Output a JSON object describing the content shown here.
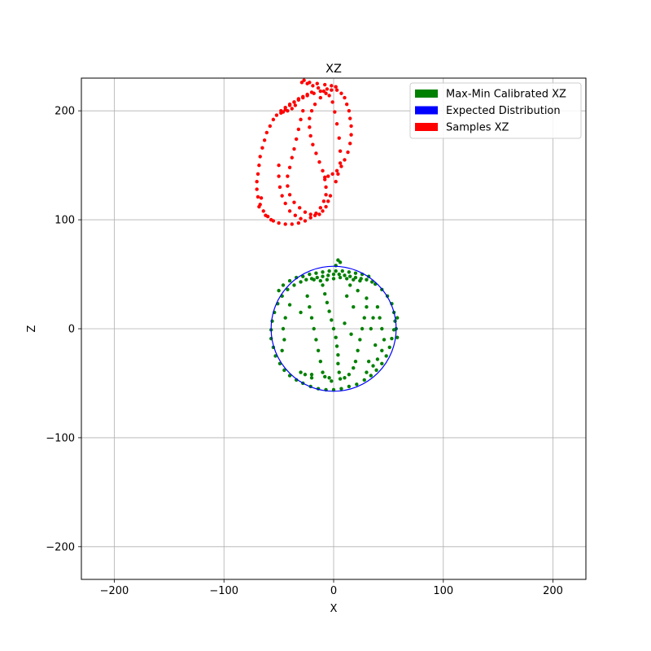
{
  "chart_data": {
    "type": "scatter",
    "title": "XZ",
    "xlabel": "X",
    "ylabel": "Z",
    "xlim": [
      -230,
      230
    ],
    "ylim": [
      -230,
      230
    ],
    "xticks": [
      -200,
      -100,
      0,
      100,
      200
    ],
    "yticks": [
      -200,
      -100,
      0,
      100,
      200
    ],
    "xtick_labels": [
      "−200",
      "−100",
      "0",
      "100",
      "200"
    ],
    "ytick_labels": [
      "−200",
      "−100",
      "0",
      "100",
      "200"
    ],
    "grid": true,
    "legend_position": "top-right",
    "legend": [
      {
        "label": "Max-Min Calibrated XZ",
        "color": "#008000"
      },
      {
        "label": "Expected Distribution",
        "color": "#0000ff"
      },
      {
        "label": "Samples XZ",
        "color": "#ff0000"
      }
    ],
    "series": [
      {
        "name": "Samples XZ",
        "kind": "points",
        "color": "#ff0000",
        "points": [
          [
            -27,
            228
          ],
          [
            -22,
            226
          ],
          [
            -15,
            225
          ],
          [
            -8,
            224
          ],
          [
            -2,
            223
          ],
          [
            2,
            222
          ],
          [
            -6,
            220
          ],
          [
            -12,
            218
          ],
          [
            -18,
            216
          ],
          [
            -24,
            214
          ],
          [
            -28,
            212
          ],
          [
            -32,
            210
          ],
          [
            -36,
            208
          ],
          [
            -40,
            206
          ],
          [
            -44,
            203
          ],
          [
            -48,
            200
          ],
          [
            -52,
            196
          ],
          [
            -55,
            192
          ],
          [
            -58,
            186
          ],
          [
            -61,
            180
          ],
          [
            -63,
            173
          ],
          [
            -65,
            166
          ],
          [
            -67,
            158
          ],
          [
            -68,
            150
          ],
          [
            -69,
            142
          ],
          [
            -70,
            135
          ],
          [
            -70,
            128
          ],
          [
            -69,
            121
          ],
          [
            -67,
            114
          ],
          [
            -64,
            108
          ],
          [
            -60,
            103
          ],
          [
            -55,
            99
          ],
          [
            -50,
            97
          ],
          [
            -44,
            96
          ],
          [
            -38,
            96
          ],
          [
            -32,
            97
          ],
          [
            -26,
            99
          ],
          [
            -21,
            102
          ],
          [
            -16,
            106
          ],
          [
            -12,
            111
          ],
          [
            -9,
            117
          ],
          [
            -7,
            123
          ],
          [
            -7,
            130
          ],
          [
            -8,
            137
          ],
          [
            -10,
            145
          ],
          [
            -13,
            153
          ],
          [
            -16,
            161
          ],
          [
            -19,
            169
          ],
          [
            -21,
            177
          ],
          [
            -22,
            185
          ],
          [
            -22,
            193
          ],
          [
            -20,
            200
          ],
          [
            -17,
            206
          ],
          [
            -12,
            212
          ],
          [
            -7,
            216
          ],
          [
            -2,
            219
          ],
          [
            3,
            219
          ],
          [
            7,
            216
          ],
          [
            10,
            212
          ],
          [
            12,
            206
          ],
          [
            14,
            200
          ],
          [
            15,
            193
          ],
          [
            16,
            186
          ],
          [
            16,
            178
          ],
          [
            15,
            170
          ],
          [
            13,
            162
          ],
          [
            10,
            155
          ],
          [
            7,
            149
          ],
          [
            3,
            145
          ],
          [
            -1,
            142
          ],
          [
            -5,
            140
          ],
          [
            -8,
            139
          ],
          [
            -48,
            198
          ],
          [
            -44,
            201
          ],
          [
            -40,
            205
          ],
          [
            -36,
            208
          ],
          [
            -32,
            211
          ],
          [
            -28,
            213
          ],
          [
            -24,
            215
          ],
          [
            -20,
            217
          ],
          [
            -50,
            150
          ],
          [
            -50,
            140
          ],
          [
            -49,
            130
          ],
          [
            -47,
            122
          ],
          [
            -44,
            115
          ],
          [
            -40,
            108
          ],
          [
            -35,
            104
          ],
          [
            -30,
            101
          ],
          [
            -28,
            200
          ],
          [
            -30,
            192
          ],
          [
            -32,
            183
          ],
          [
            -34,
            174
          ],
          [
            -36,
            165
          ],
          [
            -38,
            157
          ],
          [
            -40,
            148
          ],
          [
            -42,
            140
          ],
          [
            -42,
            131
          ],
          [
            -40,
            123
          ],
          [
            -36,
            116
          ],
          [
            -31,
            111
          ],
          [
            -26,
            107
          ],
          [
            -21,
            105
          ],
          [
            -17,
            104
          ],
          [
            -13,
            105
          ],
          [
            -10,
            108
          ],
          [
            -7,
            112
          ],
          [
            -5,
            117
          ],
          [
            -3,
            122
          ],
          [
            2,
            135
          ],
          [
            4,
            142
          ],
          [
            6,
            152
          ],
          [
            6,
            163
          ],
          [
            5,
            175
          ],
          [
            3,
            188
          ],
          [
            1,
            199
          ],
          [
            -1,
            208
          ],
          [
            -4,
            214
          ],
          [
            -9,
            218
          ],
          [
            -14,
            221
          ],
          [
            -19,
            223
          ],
          [
            -24,
            225
          ],
          [
            -29,
            226
          ],
          [
            -35,
            205
          ],
          [
            -38,
            202
          ],
          [
            -42,
            200
          ],
          [
            -46,
            199
          ],
          [
            -66,
            120
          ],
          [
            -68,
            112
          ],
          [
            -62,
            104
          ],
          [
            -57,
            100
          ]
        ]
      },
      {
        "name": "Max-Min Calibrated XZ",
        "kind": "points",
        "color": "#008000",
        "points": [
          [
            -30,
            43
          ],
          [
            -25,
            45
          ],
          [
            -20,
            46
          ],
          [
            -15,
            47
          ],
          [
            -10,
            48
          ],
          [
            -5,
            49
          ],
          [
            0,
            50
          ],
          [
            5,
            50
          ],
          [
            10,
            49
          ],
          [
            15,
            48
          ],
          [
            20,
            47
          ],
          [
            25,
            46
          ],
          [
            30,
            45
          ],
          [
            35,
            43
          ],
          [
            -28,
            48
          ],
          [
            -22,
            50
          ],
          [
            -16,
            51
          ],
          [
            -10,
            52
          ],
          [
            -4,
            53
          ],
          [
            2,
            53
          ],
          [
            8,
            53
          ],
          [
            14,
            52
          ],
          [
            20,
            51
          ],
          [
            26,
            50
          ],
          [
            32,
            48
          ],
          [
            -36,
            40
          ],
          [
            -42,
            36
          ],
          [
            -47,
            30
          ],
          [
            -51,
            23
          ],
          [
            -54,
            15
          ],
          [
            -56,
            7
          ],
          [
            -57,
            -1
          ],
          [
            -57,
            -9
          ],
          [
            -55,
            -17
          ],
          [
            -53,
            -25
          ],
          [
            -49,
            -32
          ],
          [
            -45,
            -38
          ],
          [
            -40,
            -43
          ],
          [
            -34,
            -47
          ],
          [
            -28,
            -50
          ],
          [
            -21,
            -53
          ],
          [
            -14,
            -55
          ],
          [
            -7,
            -56
          ],
          [
            0,
            -56
          ],
          [
            7,
            -55
          ],
          [
            14,
            -53
          ],
          [
            21,
            -51
          ],
          [
            28,
            -47
          ],
          [
            34,
            -43
          ],
          [
            39,
            -38
          ],
          [
            44,
            -32
          ],
          [
            48,
            -25
          ],
          [
            51,
            -17
          ],
          [
            53,
            -9
          ],
          [
            55,
            -1
          ],
          [
            56,
            7
          ],
          [
            55,
            15
          ],
          [
            53,
            23
          ],
          [
            49,
            30
          ],
          [
            44,
            36
          ],
          [
            38,
            41
          ],
          [
            4,
            63
          ],
          [
            6,
            61
          ],
          [
            2,
            58
          ],
          [
            -10,
            40
          ],
          [
            -8,
            32
          ],
          [
            -6,
            24
          ],
          [
            -4,
            16
          ],
          [
            -2,
            8
          ],
          [
            0,
            0
          ],
          [
            2,
            -8
          ],
          [
            3,
            -16
          ],
          [
            4,
            -24
          ],
          [
            4,
            -32
          ],
          [
            5,
            -40
          ],
          [
            6,
            -46
          ],
          [
            -24,
            30
          ],
          [
            -22,
            20
          ],
          [
            -20,
            10
          ],
          [
            -18,
            0
          ],
          [
            -16,
            -10
          ],
          [
            -14,
            -20
          ],
          [
            -12,
            -30
          ],
          [
            -10,
            -40
          ],
          [
            -8,
            -44
          ],
          [
            -4,
            -45
          ],
          [
            20,
            -30
          ],
          [
            22,
            -20
          ],
          [
            24,
            -10
          ],
          [
            26,
            0
          ],
          [
            28,
            10
          ],
          [
            30,
            20
          ],
          [
            30,
            28
          ],
          [
            40,
            20
          ],
          [
            42,
            10
          ],
          [
            44,
            0
          ],
          [
            46,
            -10
          ],
          [
            44,
            -20
          ],
          [
            40,
            -28
          ],
          [
            36,
            -34
          ],
          [
            10,
            -45
          ],
          [
            14,
            -42
          ],
          [
            18,
            -36
          ],
          [
            30,
            -40
          ],
          [
            32,
            -30
          ],
          [
            15,
            40
          ],
          [
            12,
            30
          ],
          [
            18,
            20
          ],
          [
            22,
            35
          ],
          [
            -45,
            -10
          ],
          [
            -47,
            -20
          ],
          [
            -46,
            0
          ],
          [
            -44,
            10
          ],
          [
            -40,
            22
          ],
          [
            -30,
            -40
          ],
          [
            -26,
            -42
          ],
          [
            -20,
            -45
          ],
          [
            58,
            10
          ],
          [
            57,
            0
          ],
          [
            58,
            -8
          ],
          [
            -50,
            35
          ],
          [
            -46,
            40
          ],
          [
            -40,
            44
          ],
          [
            -34,
            47
          ],
          [
            -18,
            45
          ],
          [
            -12,
            44
          ],
          [
            -6,
            45
          ],
          [
            0,
            46
          ],
          [
            6,
            47
          ],
          [
            12,
            46
          ],
          [
            18,
            45
          ],
          [
            24,
            44
          ],
          [
            -2,
            -48
          ],
          [
            -20,
            -42
          ],
          [
            36,
            10
          ],
          [
            34,
            0
          ],
          [
            38,
            -15
          ],
          [
            10,
            5
          ],
          [
            16,
            -5
          ],
          [
            -30,
            15
          ]
        ]
      },
      {
        "name": "Expected Distribution",
        "kind": "circle",
        "color": "#0000ff",
        "center": [
          0,
          0
        ],
        "radius": 57
      }
    ]
  }
}
